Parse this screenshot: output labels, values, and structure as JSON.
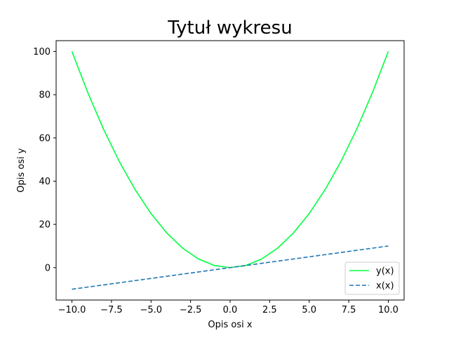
{
  "chart_data": {
    "type": "line",
    "title": "Tytuł wykresu",
    "xlabel": "Opis osi x",
    "ylabel": "Opis osi y",
    "xlim": [
      -11,
      11
    ],
    "ylim": [
      -15,
      105
    ],
    "xticks": [
      -10,
      -7.5,
      -5,
      -2.5,
      0,
      2.5,
      5,
      7.5,
      10
    ],
    "xtick_labels": [
      "−10.0",
      "−7.5",
      "−5.0",
      "−2.5",
      "0.0",
      "2.5",
      "5.0",
      "7.5",
      "10.0"
    ],
    "yticks": [
      0,
      20,
      40,
      60,
      80,
      100
    ],
    "ytick_labels": [
      "0",
      "20",
      "40",
      "60",
      "80",
      "100"
    ],
    "grid": false,
    "legend_position": "bottom-right",
    "x": [
      -10,
      -9,
      -8,
      -7,
      -6,
      -5,
      -4,
      -3,
      -2,
      -1,
      0,
      1,
      2,
      3,
      4,
      5,
      6,
      7,
      8,
      9,
      10
    ],
    "series": [
      {
        "name": "y(x)",
        "color": "#00ff40",
        "dash": "solid",
        "values": [
          100,
          81,
          64,
          49,
          36,
          25,
          16,
          9,
          4,
          1,
          0,
          1,
          4,
          9,
          16,
          25,
          36,
          49,
          64,
          81,
          100
        ]
      },
      {
        "name": "x(x)",
        "color": "#1f77b4",
        "dash": "dashed",
        "values": [
          -10,
          -9,
          -8,
          -7,
          -6,
          -5,
          -4,
          -3,
          -2,
          -1,
          0,
          1,
          2,
          3,
          4,
          5,
          6,
          7,
          8,
          9,
          10
        ]
      }
    ]
  }
}
